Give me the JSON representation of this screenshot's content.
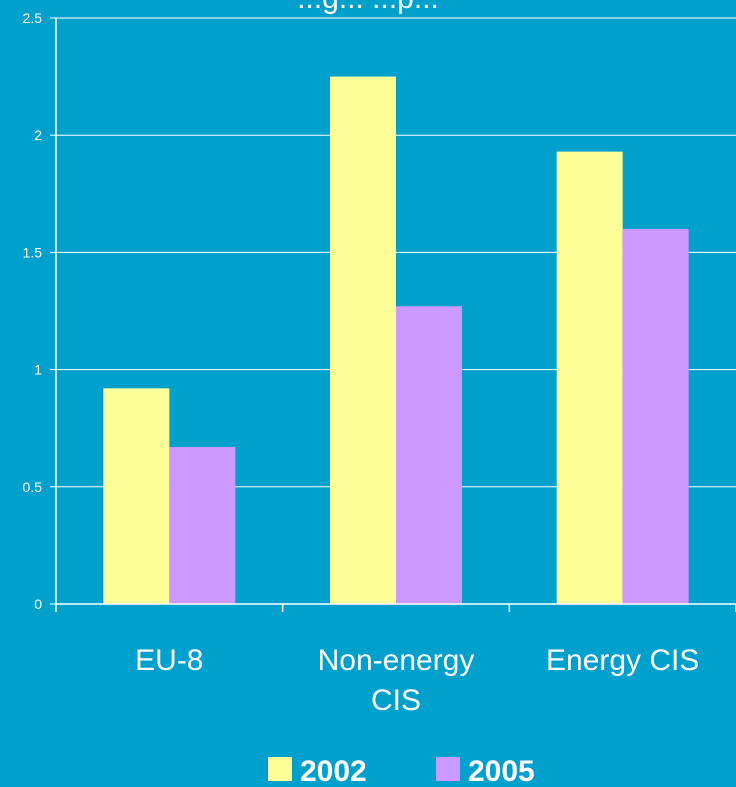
{
  "chart_data": {
    "type": "bar",
    "title": "...g... ...p...",
    "categories": [
      "EU-8",
      "Non-energy CIS",
      "Energy CIS"
    ],
    "category_lines": [
      [
        "EU-8"
      ],
      [
        "Non-energy",
        "CIS"
      ],
      [
        "Energy CIS"
      ]
    ],
    "series": [
      {
        "name": "2002",
        "values": [
          0.92,
          2.25,
          1.93
        ],
        "color": "#FFFF99"
      },
      {
        "name": "2005",
        "values": [
          0.67,
          1.27,
          1.6
        ],
        "color": "#CC99FF"
      }
    ],
    "ylim": [
      0,
      2.5
    ],
    "yticks": [
      0,
      0.5,
      1,
      1.5,
      2,
      2.5
    ],
    "ytick_labels": [
      "0",
      "0.5",
      "1",
      "1.5",
      "2",
      "2.5"
    ],
    "grid": true,
    "legend_position": "bottom",
    "colors": {
      "background": "#00A0CC",
      "axis": "#ffffff",
      "text": "#ffffff"
    }
  }
}
